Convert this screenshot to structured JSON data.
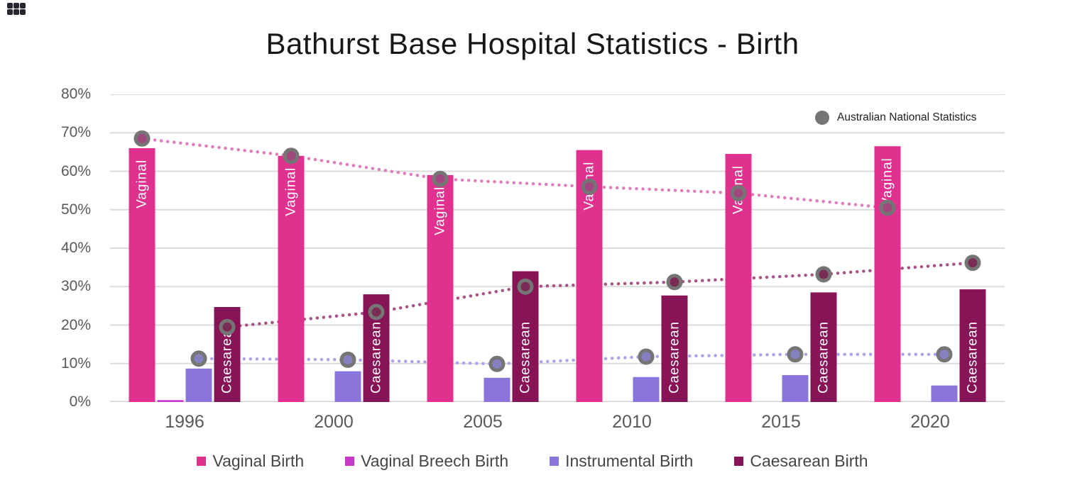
{
  "title": "Bathurst Base Hospital Statistics - Birth",
  "national_legend": {
    "label": "Australian National Statistics"
  },
  "colors": {
    "vaginal": "#E0318F",
    "breech": "#C837C8",
    "instrumental": "#8A76DB",
    "caesarean": "#871457",
    "line_vaginal": "#E07EBB",
    "line_instrumental": "#ABA5E8",
    "line_caesarean": "#A85585",
    "marker_ring": "#757575",
    "marker_fill_vaginal": "#A0487E",
    "marker_fill_instrumental": "#8780C0",
    "marker_fill_caesarean": "#7B2C55",
    "gridline": "#DBDBDB",
    "axis_line": "#D4D4D4",
    "axis_text": "#595959",
    "bar_label_text": "#FFFFFF",
    "national_dot": "#757575"
  },
  "chart_data": {
    "type": "bar",
    "title": "Bathurst Base Hospital Statistics - Birth",
    "xlabel": "",
    "ylabel": "",
    "categories": [
      "1996",
      "2000",
      "2005",
      "2010",
      "2015",
      "2020"
    ],
    "series": [
      {
        "name": "Vaginal Birth",
        "key": "vaginal",
        "bar_label": "Vaginal",
        "values": [
          66,
          64,
          59,
          65.5,
          64.5,
          66.5
        ]
      },
      {
        "name": "Vaginal Breech Birth",
        "key": "breech",
        "bar_label": "",
        "values": [
          0.5,
          0,
          0,
          0,
          0,
          0
        ]
      },
      {
        "name": "Instrumental Birth",
        "key": "instrumental",
        "bar_label": "",
        "values": [
          8.7,
          8,
          6.3,
          6.5,
          7,
          4.3
        ]
      },
      {
        "name": "Caesarean Birth",
        "key": "caesarean",
        "bar_label": "Caesarean",
        "values": [
          24.7,
          28,
          34,
          27.7,
          28.5,
          29.3
        ]
      }
    ],
    "national_series": [
      {
        "name": "Australian National Statistics - Vaginal",
        "key": "vaginal",
        "values": [
          68.5,
          64,
          58,
          56,
          54.3,
          50.5
        ]
      },
      {
        "name": "Australian National Statistics - Instrumental",
        "key": "instrumental",
        "values": [
          11.3,
          11,
          9.9,
          11.8,
          12.4,
          12.4
        ]
      },
      {
        "name": "Australian National Statistics - Caesarean",
        "key": "caesarean",
        "values": [
          19.5,
          23.4,
          30,
          31.2,
          33.2,
          36.2
        ]
      }
    ],
    "ytick_labels": [
      "80%",
      "70%",
      "60%",
      "50%",
      "40%",
      "30%",
      "20%",
      "10%",
      "0%"
    ],
    "ylim": [
      0,
      80
    ],
    "ytick_step": 10,
    "grid": true,
    "legend_position": "bottom",
    "national_legend_position": "top-right"
  }
}
